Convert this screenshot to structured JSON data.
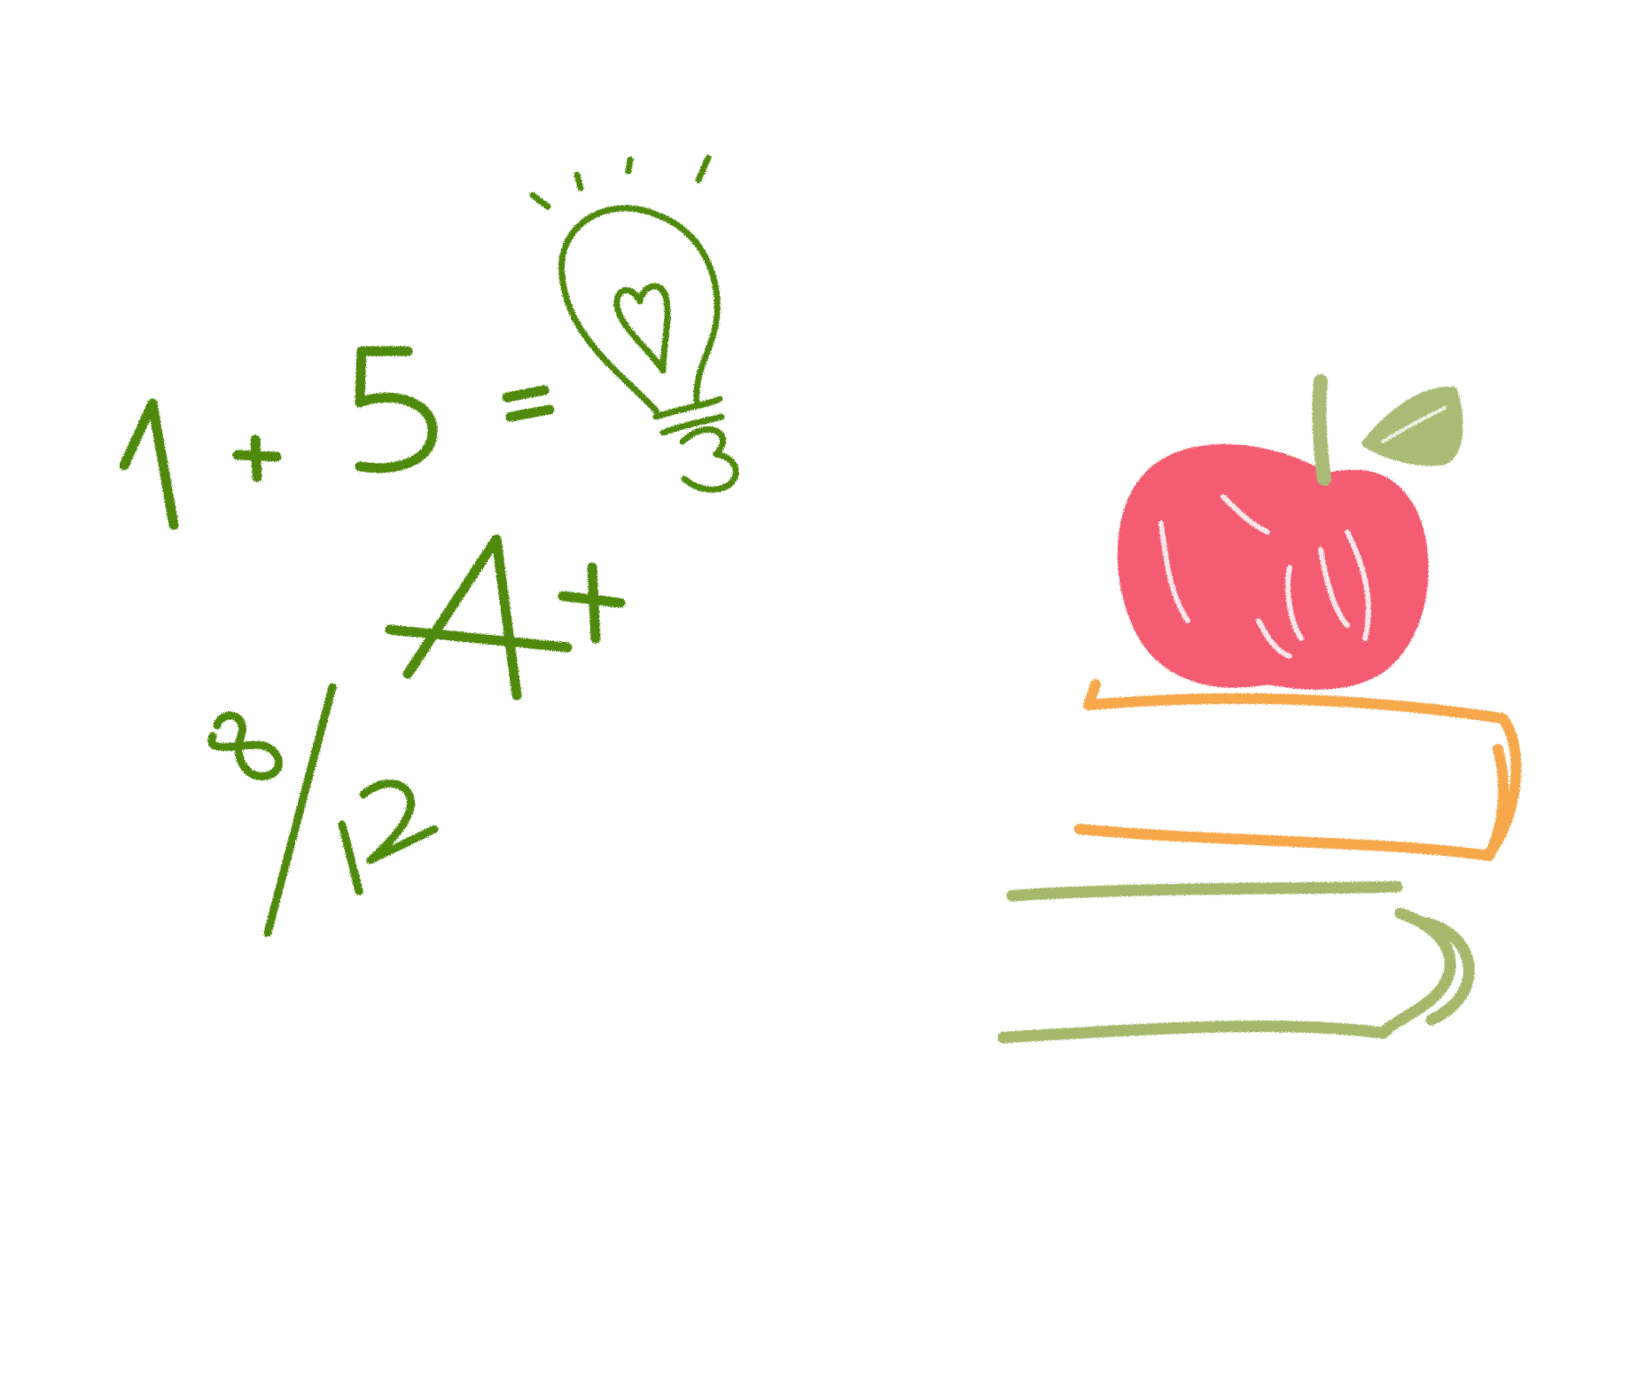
{
  "doodles": {
    "equation": {
      "term_a": "1",
      "operator_plus": "+",
      "term_b": "5",
      "operator_equals": "=",
      "result_icon": "lightbulb-icon"
    },
    "bulb_base_mark": "3",
    "grade": {
      "letter": "A",
      "modifier": "+"
    },
    "fraction": {
      "numerator": "8",
      "denominator": "12"
    }
  },
  "illustration": {
    "apple_icon": "apple-icon",
    "books_icon": "book-stack-icon"
  },
  "colors": {
    "chalk_green": "#4f8a10",
    "apple_red": "#f45b72",
    "leaf_green": "#a9bb74",
    "book_orange": "#f6a84c",
    "book_green": "#a7b86c",
    "background": "#ffffff"
  }
}
